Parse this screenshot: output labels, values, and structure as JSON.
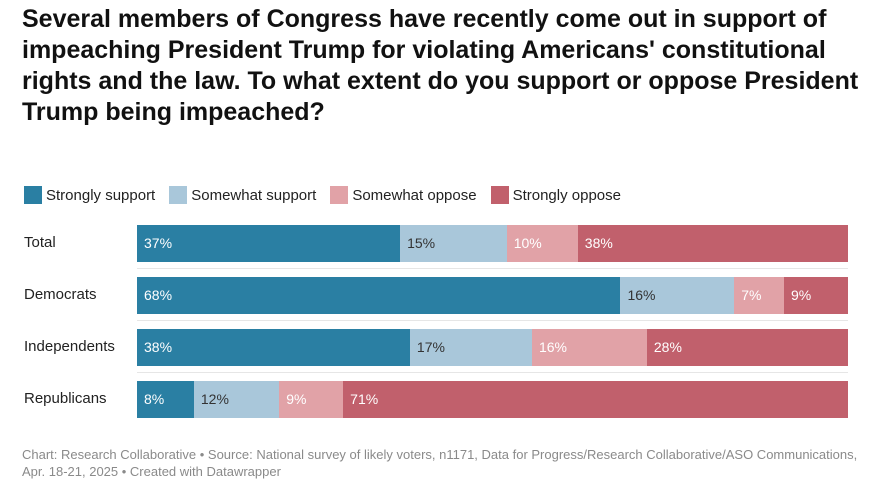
{
  "title": "Several members of Congress have recently come out in support of impeaching President Trump for violating Americans' constitutional rights and the law. To what extent do you support or oppose President Trump being impeached?",
  "footer": "Chart: Research Collaborative • Source: National survey of likely voters, n1171, Data for Progress/Research Collaborative/ASO Communications, Apr. 18-21, 2025 • Created with Datawrapper",
  "colors": {
    "strongly_support": "#2a7fa3",
    "somewhat_support": "#a9c7da",
    "somewhat_oppose": "#e1a2a7",
    "strongly_oppose": "#c1606c"
  },
  "chart_data": {
    "type": "bar",
    "orientation": "horizontal-stacked",
    "title": "Several members of Congress have recently come out in support of impeaching President Trump for violating Americans' constitutional rights and the law. To what extent do you support or oppose President Trump being impeached?",
    "categories": [
      "Total",
      "Democrats",
      "Independents",
      "Republicans"
    ],
    "series": [
      {
        "name": "Strongly support",
        "color": "#2a7fa3",
        "values": [
          37,
          68,
          38,
          8
        ],
        "labels": [
          "37%",
          "68%",
          "38%",
          "8%"
        ]
      },
      {
        "name": "Somewhat support",
        "color": "#a9c7da",
        "values": [
          15,
          16,
          17,
          12
        ],
        "labels": [
          "15%",
          "16%",
          "17%",
          "12%"
        ]
      },
      {
        "name": "Somewhat oppose",
        "color": "#e1a2a7",
        "values": [
          10,
          7,
          16,
          9
        ],
        "labels": [
          "10%",
          "7%",
          "16%",
          "9%"
        ]
      },
      {
        "name": "Strongly oppose",
        "color": "#c1606c",
        "values": [
          38,
          9,
          28,
          71
        ],
        "labels": [
          "38%",
          "9%",
          "28%",
          "71%"
        ]
      }
    ],
    "xlim": [
      0,
      100
    ],
    "legend": "top-left",
    "grid": false
  }
}
